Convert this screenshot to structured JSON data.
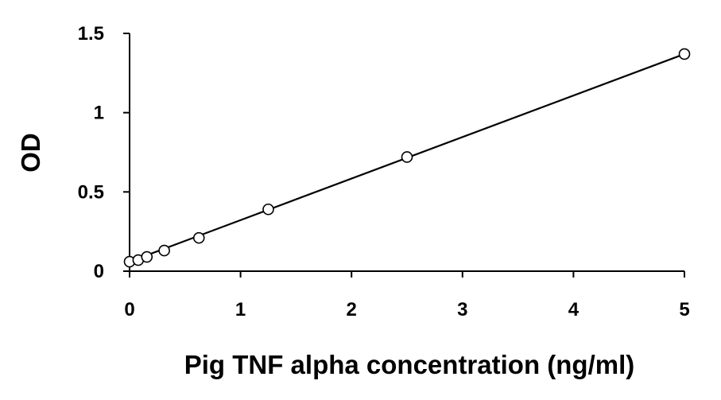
{
  "chart_data": {
    "type": "scatter",
    "title": "",
    "xlabel": "Pig TNF alpha concentration (ng/ml)",
    "ylabel": "OD",
    "xlim": [
      0,
      5
    ],
    "ylim": [
      0,
      1.5
    ],
    "x_ticks": [
      0,
      1,
      2,
      3,
      4,
      5
    ],
    "x_tick_labels": [
      "0",
      "1",
      "2",
      "3",
      "4",
      "5"
    ],
    "y_ticks": [
      0,
      0.5,
      1,
      1.5
    ],
    "y_tick_labels": [
      "0",
      "0.5",
      "1",
      "1.5"
    ],
    "grid": false,
    "series": [
      {
        "marker": "open-circle",
        "x": [
          0,
          0.078,
          0.156,
          0.3125,
          0.625,
          1.25,
          2.5,
          5
        ],
        "y": [
          0.06,
          0.07,
          0.09,
          0.13,
          0.21,
          0.39,
          0.72,
          1.37
        ]
      }
    ],
    "trendline": {
      "type": "linear",
      "x": [
        0,
        5
      ],
      "y": [
        0.06,
        1.37
      ]
    }
  }
}
